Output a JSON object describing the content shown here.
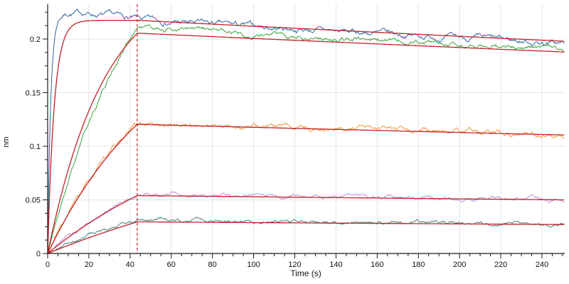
{
  "figure": {
    "background": "#ffffff"
  },
  "chart_data": {
    "type": "line",
    "title": "",
    "xlabel": "Time (s)",
    "ylabel": "nm",
    "xlim": [
      0,
      251
    ],
    "ylim": [
      0,
      0.2325
    ],
    "x_major_ticks": [
      0,
      20,
      40,
      60,
      80,
      100,
      120,
      140,
      160,
      180,
      200,
      220,
      240
    ],
    "x_minor_tick_step": 5,
    "x_minor_tick_max": 250,
    "y_major_ticks": [
      0,
      0.05,
      0.1,
      0.15,
      0.2
    ],
    "y_tick_labels": [
      "0",
      "0.05",
      "0.1",
      "0.15",
      "0.2"
    ],
    "y_minor_tick_step": 0.0125,
    "y_minor_tick_max": 0.225,
    "grid": true,
    "grid_color": "#e4e4e4",
    "axis_color": "#1a1a1a",
    "fit_color": "#c22127",
    "phase_divider": {
      "time_s": 43.5,
      "style": "dashed",
      "color": "#c22127"
    },
    "legend": "none",
    "description": "Sensorgram: five noisy binding traces with red kinetic fit curves; association phase 0-43.5 s, dissociation phase 43.5-251 s, red dashed line marks the phase boundary",
    "series": [
      {
        "name": "trace-blue",
        "color": "#3465a4",
        "noise": 0.003,
        "seed": 7,
        "association": {
          "amplitude": 0.2245,
          "tau_s": 1.5,
          "sag_per_s": 0.00025,
          "sag_start_s": 18
        },
        "response_at_split_nm": 0.218,
        "dissociation_tau_s": 1940,
        "response_at_end_nm": 0.196,
        "fit": {
          "amplitude": 0.2175,
          "tau_s": 3.2,
          "split_nm": 0.2175,
          "dissociation_tau_s": 2200,
          "end_nm": 0.198
        }
      },
      {
        "name": "trace-green",
        "color": "#3ba13b",
        "noise": 0.0026,
        "seed": 21,
        "association": {
          "amplitude": 0.3405,
          "tau_s": 45
        },
        "response_at_split_nm": 0.211,
        "dissociation_tau_s": 1970,
        "response_at_end_nm": 0.19,
        "fit": {
          "amplitude": 0.2606,
          "tau_s": 28,
          "split_nm": 0.2055,
          "dissociation_tau_s": 2320,
          "end_nm": 0.188
        }
      },
      {
        "name": "trace-orange",
        "color": "#f09a3c",
        "noise": 0.0026,
        "seed": 33,
        "association": {
          "amplitude": 0.2293,
          "tau_s": 58
        },
        "response_at_split_nm": 0.121,
        "dissociation_tau_s": 2395,
        "response_at_end_nm": 0.111,
        "fit": {
          "amplitude": 0.2205,
          "tau_s": 55,
          "split_nm": 0.1205,
          "dissociation_tau_s": 2385,
          "end_nm": 0.1105
        }
      },
      {
        "name": "trace-violet",
        "color": "#bd8fd6",
        "noise": 0.002,
        "seed": 45,
        "association": {
          "amplitude": 0.1323,
          "tau_s": 80
        },
        "response_at_split_nm": 0.0555,
        "dissociation_tau_s": 2190,
        "response_at_end_nm": 0.0505,
        "fit": {
          "amplitude": 0.1348,
          "tau_s": 85,
          "split_nm": 0.054,
          "dissociation_tau_s": 2683,
          "end_nm": 0.05
        }
      },
      {
        "name": "trace-teal",
        "color": "#3f837e",
        "noise": 0.0018,
        "seed": 57,
        "association": {
          "amplitude": 0.0611,
          "tau_s": 60
        },
        "response_at_split_nm": 0.0315,
        "dissociation_tau_s": 1520,
        "response_at_end_nm": 0.0275,
        "fit": {
          "amplitude": 0.1172,
          "tau_s": 150,
          "split_nm": 0.0295,
          "dissociation_tau_s": 2333,
          "end_nm": 0.027
        }
      }
    ]
  }
}
